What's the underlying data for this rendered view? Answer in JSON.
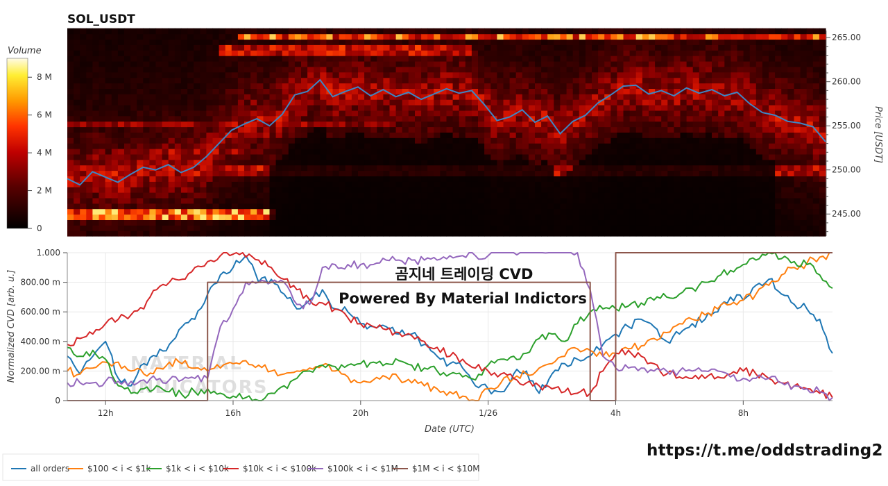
{
  "title": "SOL_USDT",
  "colorbar": {
    "label": "Volume",
    "ticks": [
      "0",
      "2 M",
      "4 M",
      "6 M",
      "8 M"
    ],
    "tick_values": [
      0,
      2,
      4,
      6,
      8
    ],
    "max": 9
  },
  "overlay": {
    "line1": "곰지네 트레이딩 CVD",
    "line2": "Powered By Material Indictors"
  },
  "watermark": "MATERIAL INDICATORS",
  "link": "https://t.me/oddstrading2",
  "colors": {
    "all_orders": "#1f77b4",
    "s100_1k": "#ff7f0e",
    "s1k_10k": "#2ca02c",
    "s10k_100k": "#d62728",
    "s100k_1m": "#9467bd",
    "s1m_10m": "#8c564b",
    "price_line": "#3d86c4"
  },
  "chart_data": [
    {
      "type": "heatmap",
      "title": "SOL_USDT",
      "ylabel": "Price [USDT]",
      "y_ticks": [
        "245.00",
        "250.00",
        "255.00",
        "260.00",
        "265.00"
      ],
      "ylim": [
        242.5,
        265.8
      ],
      "x_time_range_hours": [
        10.8,
        34.8
      ],
      "color_label": "Volume",
      "price_series": {
        "hours": [
          10.8,
          11.2,
          11.6,
          12.0,
          12.4,
          12.8,
          13.2,
          13.6,
          14.0,
          14.4,
          14.8,
          15.2,
          15.6,
          16.0,
          16.4,
          16.8,
          17.2,
          17.6,
          18.0,
          18.4,
          18.8,
          19.2,
          19.6,
          20.0,
          20.4,
          20.8,
          21.2,
          21.6,
          22.0,
          22.4,
          22.8,
          23.2,
          23.6,
          24.0,
          24.4,
          24.8,
          25.2,
          25.6,
          26.0,
          26.4,
          26.8,
          27.2,
          27.6,
          28.0,
          28.4,
          28.8,
          29.2,
          29.6,
          30.0,
          30.4,
          30.8,
          31.2,
          31.6,
          32.0,
          32.4,
          32.8,
          33.2,
          33.6,
          34.0,
          34.4,
          34.8
        ],
        "price": [
          249.0,
          248.3,
          249.8,
          249.2,
          248.6,
          249.5,
          250.3,
          250.0,
          250.6,
          249.7,
          250.3,
          251.5,
          253.0,
          254.5,
          255.2,
          255.8,
          255.0,
          256.3,
          258.5,
          258.9,
          260.2,
          258.3,
          258.9,
          259.4,
          258.4,
          259.1,
          258.3,
          258.8,
          258.0,
          258.6,
          259.2,
          258.7,
          259.0,
          257.4,
          255.6,
          256.0,
          256.8,
          255.4,
          256.1,
          254.1,
          255.5,
          256.2,
          257.6,
          258.5,
          259.5,
          259.6,
          258.6,
          259.0,
          258.4,
          259.3,
          258.7,
          259.1,
          258.4,
          258.8,
          257.5,
          256.5,
          256.2,
          255.5,
          255.3,
          254.9,
          253.2
        ]
      }
    },
    {
      "type": "line",
      "xlabel": "Date (UTC)",
      "ylabel": "Normalized CVD [arb. u.]",
      "x_tick_labels": [
        "12h",
        "16h",
        "20h",
        "1/26",
        "4h",
        "8h"
      ],
      "x_tick_hours": [
        12,
        16,
        20,
        24,
        28,
        32
      ],
      "xlim": [
        10.8,
        34.8
      ],
      "y_tick_labels": [
        "0",
        "200.00 m",
        "400.00 m",
        "600.00 m",
        "800.00 m",
        "1.000"
      ],
      "y_tick_values": [
        0,
        0.2,
        0.4,
        0.6,
        0.8,
        1.0
      ],
      "ylim": [
        0,
        1.0
      ],
      "x": [
        10.8,
        11.2,
        11.6,
        12.0,
        12.4,
        12.8,
        13.2,
        13.6,
        14.0,
        14.4,
        14.8,
        15.2,
        15.6,
        16.0,
        16.4,
        16.8,
        17.2,
        17.6,
        18.0,
        18.4,
        18.8,
        19.2,
        19.6,
        20.0,
        20.4,
        20.8,
        21.2,
        21.6,
        22.0,
        22.4,
        22.8,
        23.2,
        23.6,
        24.0,
        24.4,
        24.8,
        25.2,
        25.6,
        26.0,
        26.4,
        26.8,
        27.2,
        27.6,
        28.0,
        28.4,
        28.8,
        29.2,
        29.6,
        30.0,
        30.4,
        30.8,
        31.2,
        31.6,
        32.0,
        32.4,
        32.8,
        33.2,
        33.6,
        34.0,
        34.4,
        34.8
      ],
      "series": [
        {
          "name": "all orders",
          "values": [
            0.3,
            0.18,
            0.3,
            0.4,
            0.15,
            0.1,
            0.25,
            0.3,
            0.38,
            0.5,
            0.55,
            0.72,
            0.85,
            0.9,
            0.98,
            0.8,
            0.82,
            0.72,
            0.62,
            0.68,
            0.75,
            0.62,
            0.6,
            0.52,
            0.5,
            0.5,
            0.45,
            0.45,
            0.38,
            0.3,
            0.25,
            0.22,
            0.1,
            0.08,
            0.06,
            0.18,
            0.2,
            0.05,
            0.18,
            0.25,
            0.28,
            0.3,
            0.38,
            0.45,
            0.5,
            0.55,
            0.5,
            0.4,
            0.45,
            0.52,
            0.55,
            0.6,
            0.7,
            0.68,
            0.78,
            0.82,
            0.72,
            0.65,
            0.62,
            0.55,
            0.32
          ]
        },
        {
          "name": "$100 < i < $1k",
          "values": [
            0.2,
            0.18,
            0.22,
            0.26,
            0.26,
            0.2,
            0.18,
            0.22,
            0.26,
            0.25,
            0.22,
            0.2,
            0.22,
            0.25,
            0.27,
            0.24,
            0.2,
            0.18,
            0.2,
            0.22,
            0.24,
            0.2,
            0.16,
            0.12,
            0.14,
            0.16,
            0.15,
            0.12,
            0.1,
            0.08,
            0.06,
            0.03,
            0.0,
            0.08,
            0.12,
            0.15,
            0.18,
            0.22,
            0.25,
            0.3,
            0.35,
            0.34,
            0.3,
            0.32,
            0.35,
            0.37,
            0.42,
            0.46,
            0.52,
            0.55,
            0.58,
            0.62,
            0.65,
            0.68,
            0.72,
            0.78,
            0.85,
            0.9,
            0.93,
            0.97,
            1.0
          ]
        },
        {
          "name": "$1k < i < $10k",
          "values": [
            0.36,
            0.3,
            0.34,
            0.28,
            0.1,
            0.05,
            0.08,
            0.1,
            0.06,
            0.04,
            0.06,
            0.08,
            0.05,
            0.03,
            0.02,
            0.0,
            0.05,
            0.1,
            0.15,
            0.2,
            0.24,
            0.23,
            0.24,
            0.25,
            0.26,
            0.25,
            0.27,
            0.24,
            0.22,
            0.2,
            0.18,
            0.16,
            0.14,
            0.24,
            0.28,
            0.3,
            0.32,
            0.42,
            0.45,
            0.4,
            0.52,
            0.6,
            0.62,
            0.62,
            0.64,
            0.66,
            0.68,
            0.7,
            0.72,
            0.76,
            0.8,
            0.84,
            0.88,
            0.92,
            0.95,
            1.0,
            0.96,
            0.94,
            0.92,
            0.85,
            0.76
          ]
        },
        {
          "name": "$10k < i < $100k",
          "values": [
            0.38,
            0.42,
            0.45,
            0.52,
            0.55,
            0.58,
            0.62,
            0.75,
            0.8,
            0.82,
            0.9,
            0.94,
            0.98,
            0.99,
            0.97,
            0.95,
            0.9,
            0.82,
            0.75,
            0.68,
            0.66,
            0.62,
            0.56,
            0.52,
            0.5,
            0.48,
            0.46,
            0.44,
            0.4,
            0.36,
            0.3,
            0.28,
            0.22,
            0.2,
            0.18,
            0.15,
            0.12,
            0.1,
            0.08,
            0.06,
            0.05,
            0.05,
            0.2,
            0.32,
            0.34,
            0.3,
            0.25,
            0.18,
            0.16,
            0.15,
            0.15,
            0.16,
            0.18,
            0.2,
            0.18,
            0.15,
            0.12,
            0.1,
            0.08,
            0.05,
            0.02
          ]
        },
        {
          "name": "$100k < i < $1M",
          "values": [
            0.12,
            0.12,
            0.12,
            0.13,
            0.13,
            0.13,
            0.14,
            0.14,
            0.14,
            0.14,
            0.15,
            0.15,
            0.5,
            0.62,
            0.8,
            0.8,
            0.8,
            0.8,
            0.65,
            0.65,
            0.9,
            0.92,
            0.92,
            0.92,
            0.92,
            0.95,
            0.95,
            0.95,
            0.95,
            0.95,
            0.98,
            0.98,
            0.98,
            0.98,
            1.0,
            1.0,
            1.0,
            1.0,
            1.0,
            1.0,
            1.0,
            0.75,
            0.3,
            0.22,
            0.22,
            0.22,
            0.2,
            0.2,
            0.2,
            0.2,
            0.2,
            0.2,
            0.16,
            0.15,
            0.15,
            0.15,
            0.12,
            0.1,
            0.08,
            0.06,
            0.02
          ]
        },
        {
          "name": "$1M < i < $10M",
          "values": [
            0.0,
            0.0,
            0.0,
            0.0,
            0.0,
            0.0,
            0.0,
            0.0,
            0.0,
            0.0,
            0.0,
            0.8,
            0.8,
            0.8,
            0.8,
            0.8,
            0.8,
            0.8,
            0.8,
            0.8,
            0.8,
            0.8,
            0.8,
            0.8,
            0.8,
            0.8,
            0.8,
            0.8,
            0.8,
            0.8,
            0.8,
            0.8,
            0.8,
            0.8,
            0.8,
            0.8,
            0.8,
            0.8,
            0.8,
            0.8,
            0.8,
            0.0,
            0.0,
            1.0,
            1.0,
            1.0,
            1.0,
            1.0,
            1.0,
            1.0,
            1.0,
            1.0,
            1.0,
            1.0,
            1.0,
            1.0,
            1.0,
            1.0,
            1.0,
            1.0,
            1.0
          ]
        }
      ],
      "legend_position": "bottom-left"
    }
  ]
}
